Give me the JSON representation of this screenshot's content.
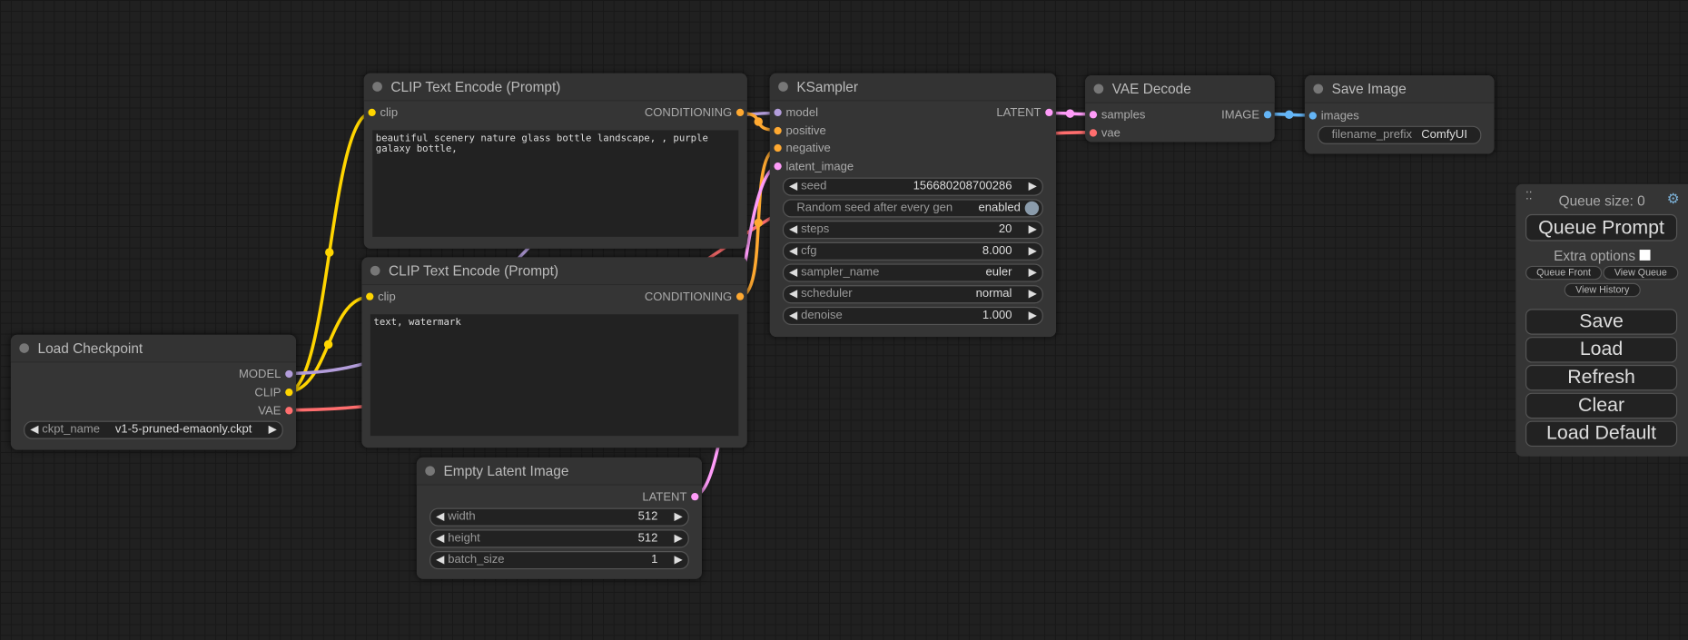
{
  "colors": {
    "clip": "#ffd500",
    "model": "#b39ddb",
    "vae": "#ff6e6e",
    "conditioning": "#ffa931",
    "latent": "#ff9cf9",
    "image": "#64b5f6"
  },
  "nodes": {
    "clip_pos": {
      "title": "CLIP Text Encode (Prompt)",
      "input": "clip",
      "output": "CONDITIONING",
      "text": "beautiful scenery nature glass bottle landscape, , purple galaxy bottle,"
    },
    "clip_neg": {
      "title": "CLIP Text Encode (Prompt)",
      "input": "clip",
      "output": "CONDITIONING",
      "text": "text, watermark"
    },
    "checkpoint": {
      "title": "Load Checkpoint",
      "outputs": [
        "MODEL",
        "CLIP",
        "VAE"
      ],
      "widget": {
        "name": "ckpt_name",
        "value": "v1-5-pruned-emaonly.ckpt"
      }
    },
    "latent": {
      "title": "Empty Latent Image",
      "output": "LATENT",
      "widgets": [
        {
          "name": "width",
          "value": "512"
        },
        {
          "name": "height",
          "value": "512"
        },
        {
          "name": "batch_size",
          "value": "1"
        }
      ]
    },
    "ksampler": {
      "title": "KSampler",
      "inputs": [
        "model",
        "positive",
        "negative",
        "latent_image"
      ],
      "output": "LATENT",
      "seed": {
        "name": "seed",
        "value": "156680208700286"
      },
      "random": {
        "name": "Random seed after every gen",
        "value": "enabled"
      },
      "widgets": [
        {
          "name": "steps",
          "value": "20"
        },
        {
          "name": "cfg",
          "value": "8.000"
        },
        {
          "name": "sampler_name",
          "value": "euler"
        },
        {
          "name": "scheduler",
          "value": "normal"
        },
        {
          "name": "denoise",
          "value": "1.000"
        }
      ]
    },
    "vae_decode": {
      "title": "VAE Decode",
      "inputs": [
        "samples",
        "vae"
      ],
      "output": "IMAGE"
    },
    "save_image": {
      "title": "Save Image",
      "input": "images",
      "widget": {
        "name": "filename_prefix",
        "value": "ComfyUI"
      }
    }
  },
  "panel": {
    "queue_size": "Queue size: 0",
    "queue_prompt": "Queue Prompt",
    "extra_options": "Extra options",
    "queue_front": "Queue Front",
    "view_queue": "View Queue",
    "view_history": "View History",
    "save": "Save",
    "load": "Load",
    "refresh": "Refresh",
    "clear": "Clear",
    "load_default": "Load Default",
    "settings_icon": "gear-icon"
  }
}
